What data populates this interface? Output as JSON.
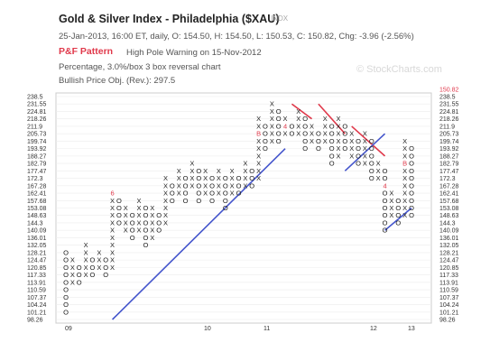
{
  "header": {
    "title": "Gold & Silver Index - Philadelphia ($XAU)",
    "symbol_tag": "INDX",
    "quote_line": "25-Jan-2013, 16:00 ET, daily, O: 154.50, H: 154.50, L: 150.53, C: 150.82, Chg: -3.96 (-2.56%)",
    "pattern_label": "P&F Pattern",
    "pattern_text": "High Pole Warning on 15-Nov-2012",
    "scale_line": "Percentage, 3.0%/box 3 box reversal chart",
    "objective_line": "Bullish Price Obj. (Rev.): 297.5",
    "watermark": "© StockCharts.com"
  },
  "chart_data": {
    "type": "point-and-figure",
    "box_size_pct": 3.0,
    "reversal_boxes": 3,
    "price_levels": [
      "238.5",
      "231.55",
      "224.81",
      "218.26",
      "211.9",
      "205.73",
      "199.74",
      "193.92",
      "188.27",
      "182.79",
      "177.47",
      "172.3",
      "167.28",
      "162.41",
      "157.68",
      "153.08",
      "148.63",
      "144.3",
      "140.09",
      "136.01",
      "132.05",
      "128.21",
      "124.47",
      "120.85",
      "117.33",
      "113.91",
      "110.59",
      "107.37",
      "104.24",
      "101.21",
      "98.26"
    ],
    "last_price": "150.82",
    "x_labels": [
      "09",
      "10",
      "11",
      "12",
      "13"
    ],
    "columns": [
      {
        "type": "O",
        "high": "128.21",
        "low": "101.21"
      },
      {
        "type": "X",
        "high": "124.47",
        "low": "113.91"
      },
      {
        "type": "O",
        "high": "120.85",
        "low": "113.91"
      },
      {
        "type": "X",
        "high": "132.05",
        "low": "117.33"
      },
      {
        "type": "O",
        "high": "124.47",
        "low": "117.33"
      },
      {
        "type": "X",
        "high": "128.21",
        "low": "120.85"
      },
      {
        "type": "O",
        "high": "124.47",
        "low": "117.33"
      },
      {
        "type": "X",
        "high": "162.41",
        "low": "120.85"
      },
      {
        "type": "O",
        "high": "157.68",
        "low": "144.3"
      },
      {
        "type": "X",
        "high": "153.08",
        "low": "140.09"
      },
      {
        "type": "O",
        "high": "148.63",
        "low": "136.01"
      },
      {
        "type": "X",
        "high": "157.68",
        "low": "140.09"
      },
      {
        "type": "O",
        "high": "153.08",
        "low": "132.05"
      },
      {
        "type": "X",
        "high": "153.08",
        "low": "136.01"
      },
      {
        "type": "O",
        "high": "148.63",
        "low": "140.09"
      },
      {
        "type": "X",
        "high": "172.3",
        "low": "144.3"
      },
      {
        "type": "O",
        "high": "167.28",
        "low": "157.68"
      },
      {
        "type": "X",
        "high": "177.47",
        "low": "162.41"
      },
      {
        "type": "O",
        "high": "172.3",
        "low": "157.68"
      },
      {
        "type": "X",
        "high": "182.79",
        "low": "167.28"
      },
      {
        "type": "O",
        "high": "177.47",
        "low": "157.68"
      },
      {
        "type": "X",
        "high": "177.47",
        "low": "162.41"
      },
      {
        "type": "O",
        "high": "172.3",
        "low": "157.68"
      },
      {
        "type": "X",
        "high": "177.47",
        "low": "162.41"
      },
      {
        "type": "O",
        "high": "172.3",
        "low": "153.08"
      },
      {
        "type": "X",
        "high": "177.47",
        "low": "162.41"
      },
      {
        "type": "O",
        "high": "172.3",
        "low": "162.41"
      },
      {
        "type": "X",
        "high": "182.79",
        "low": "167.28"
      },
      {
        "type": "O",
        "high": "177.47",
        "low": "167.28"
      },
      {
        "type": "X",
        "high": "218.26",
        "low": "172.3"
      },
      {
        "type": "O",
        "high": "211.9",
        "low": "193.92"
      },
      {
        "type": "X",
        "high": "231.55",
        "low": "199.74"
      },
      {
        "type": "O",
        "high": "224.81",
        "low": "199.74"
      },
      {
        "type": "X",
        "high": "218.26",
        "low": "205.73"
      },
      {
        "type": "O",
        "high": "211.9",
        "low": "205.73"
      },
      {
        "type": "X",
        "high": "224.81",
        "low": "205.73"
      },
      {
        "type": "O",
        "high": "218.26",
        "low": "193.92"
      },
      {
        "type": "X",
        "high": "211.9",
        "low": "199.74"
      },
      {
        "type": "O",
        "high": "205.73",
        "low": "193.92"
      },
      {
        "type": "X",
        "high": "218.26",
        "low": "199.74"
      },
      {
        "type": "O",
        "high": "211.9",
        "low": "182.79"
      },
      {
        "type": "X",
        "high": "218.26",
        "low": "188.27"
      },
      {
        "type": "O",
        "high": "211.9",
        "low": "193.92"
      },
      {
        "type": "X",
        "high": "205.73",
        "low": "188.27"
      },
      {
        "type": "O",
        "high": "199.74",
        "low": "182.79"
      },
      {
        "type": "X",
        "high": "205.73",
        "low": "182.79"
      },
      {
        "type": "O",
        "high": "199.74",
        "low": "172.3"
      },
      {
        "type": "X",
        "high": "182.79",
        "low": "172.3"
      },
      {
        "type": "O",
        "high": "177.47",
        "low": "140.09"
      },
      {
        "type": "X",
        "high": "162.41",
        "low": "148.63"
      },
      {
        "type": "O",
        "high": "157.68",
        "low": "144.3"
      },
      {
        "type": "X",
        "high": "199.74",
        "low": "148.63"
      },
      {
        "type": "O",
        "high": "193.92",
        "low": "148.63"
      }
    ],
    "month_markers": [
      {
        "col": 4,
        "level": "132.05",
        "label": "2"
      },
      {
        "col": 7,
        "level": "162.41",
        "label": "6"
      },
      {
        "col": 29,
        "level": "205.73",
        "label": "B"
      },
      {
        "col": 33,
        "level": "211.9",
        "label": "4"
      },
      {
        "col": 48,
        "level": "167.28",
        "label": "4"
      },
      {
        "col": 51,
        "level": "182.79",
        "label": "B"
      }
    ],
    "trendlines": [
      {
        "kind": "bullish support",
        "from": {
          "col": 7,
          "level": "98.26"
        },
        "to": {
          "col": 33,
          "level": "193.92"
        }
      },
      {
        "kind": "bearish resistance",
        "from": {
          "col": 34,
          "level": "231.55"
        },
        "to": {
          "col": 37,
          "level": "218.26"
        }
      },
      {
        "kind": "bearish resistance",
        "from": {
          "col": 38,
          "level": "231.55"
        },
        "to": {
          "col": 42,
          "level": "205.73"
        }
      },
      {
        "kind": "bearish resistance",
        "from": {
          "col": 43,
          "level": "211.9"
        },
        "to": {
          "col": 48,
          "level": "188.27"
        }
      },
      {
        "kind": "bullish support",
        "from": {
          "col": 42,
          "level": "177.47"
        },
        "to": {
          "col": 48,
          "level": "205.73"
        }
      },
      {
        "kind": "bullish support",
        "from": {
          "col": 48,
          "level": "140.09"
        },
        "to": {
          "col": 52,
          "level": "153.08"
        }
      }
    ],
    "colors": {
      "up": "#222222",
      "down": "#222222",
      "bearish": "#e0394b",
      "bullish": "#4455cc",
      "marker": "#e0394b",
      "last": "#e0394b"
    }
  }
}
